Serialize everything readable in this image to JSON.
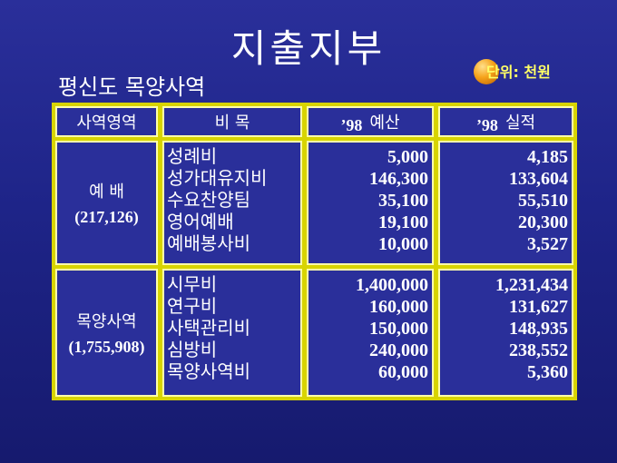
{
  "title": "지출지부",
  "subtitle": "평신도 목양사역",
  "unit_label": "단위: 천원",
  "table": {
    "headers": {
      "area": "사역영역",
      "item": "비  목",
      "budget_year": "’98",
      "budget_label": "예산",
      "actual_year": "’98",
      "actual_label": "실적"
    },
    "groups": [
      {
        "name": "예  배",
        "total": "(217,126)",
        "items": [
          "성례비",
          "성가대유지비",
          "수요찬양팀",
          "영어예배",
          "예배봉사비"
        ],
        "budget": [
          "5,000",
          "146,300",
          "35,100",
          "19,100",
          "10,000"
        ],
        "actual": [
          "4,185",
          "133,604",
          "55,510",
          "20,300",
          "3,527"
        ]
      },
      {
        "name": "목양사역",
        "total": "(1,755,908)",
        "items": [
          "시무비",
          "연구비",
          "사택관리비",
          "심방비",
          "목양사역비"
        ],
        "budget": [
          "1,400,000",
          "160,000",
          "150,000",
          "240,000",
          "60,000"
        ],
        "actual": [
          "1,231,434",
          "131,627",
          "148,935",
          "238,552",
          "5,360"
        ]
      }
    ]
  }
}
